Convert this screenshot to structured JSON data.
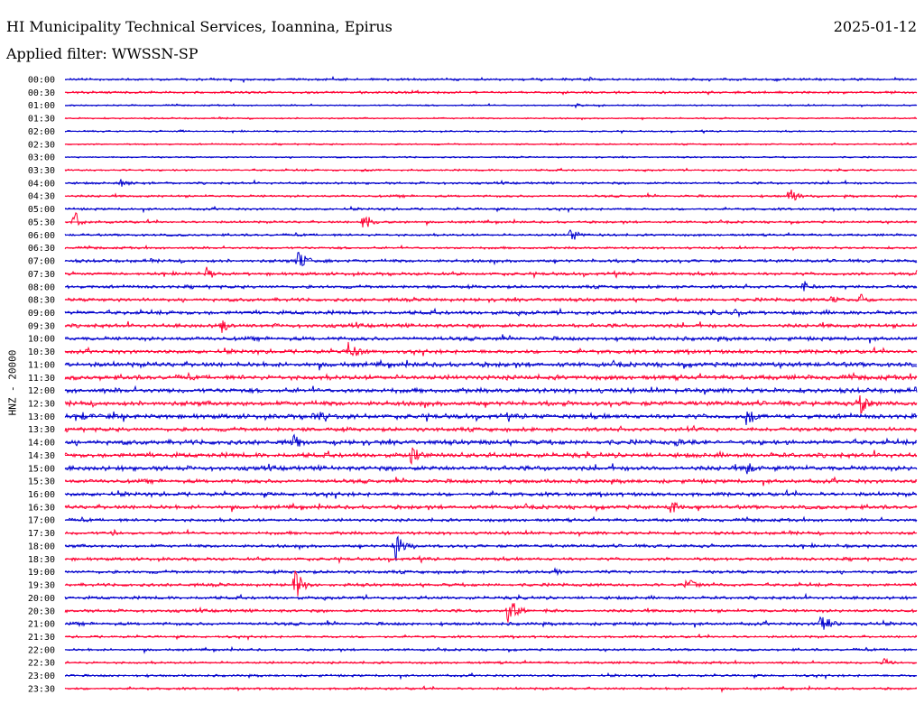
{
  "header": {
    "title": "HI Municipality Technical Services, Ioannina, Epirus",
    "date": "2025-01-12",
    "filter": "Applied filter: WWSSN-SP"
  },
  "chart_data": {
    "type": "line",
    "title": "HI Municipality Technical Services, Ioannina, Epirus",
    "date": "2025-01-12",
    "filter": "Applied filter: WWSSN-SP",
    "ylabel": "HNZ - 20000",
    "colors": {
      "even_row": "#0000cc",
      "odd_row": "#ff0033"
    },
    "row_labels": [
      "00:00",
      "00:30",
      "01:00",
      "01:30",
      "02:00",
      "02:30",
      "03:00",
      "03:30",
      "04:00",
      "04:30",
      "05:00",
      "05:30",
      "06:00",
      "06:30",
      "07:00",
      "07:30",
      "08:00",
      "08:30",
      "09:00",
      "09:30",
      "10:00",
      "10:30",
      "11:00",
      "11:30",
      "12:00",
      "12:30",
      "13:00",
      "13:30",
      "14:00",
      "14:30",
      "15:00",
      "15:30",
      "16:00",
      "16:30",
      "17:00",
      "17:30",
      "18:00",
      "18:30",
      "19:00",
      "19:30",
      "20:00",
      "20:30",
      "21:00",
      "21:30",
      "22:00",
      "22:30",
      "23:00",
      "23:30"
    ],
    "noise_level": [
      1.5,
      1.5,
      1,
      1,
      1,
      1,
      1,
      1.2,
      1.5,
      1.5,
      1.5,
      1.5,
      1.5,
      1.5,
      2,
      2,
      2,
      2.2,
      2.5,
      2.5,
      2.5,
      2.5,
      3,
      3,
      3,
      3,
      3,
      2.5,
      3,
      3,
      3,
      2.5,
      2.5,
      2.5,
      2,
      2,
      2,
      2,
      2,
      2,
      2,
      2,
      2,
      1.5,
      1.5,
      1.5,
      1.5,
      1.5
    ],
    "events": [
      {
        "row": 0,
        "minute": 18.5,
        "amplitude": 4
      },
      {
        "row": 2,
        "minute": 18,
        "amplitude": 3
      },
      {
        "row": 4,
        "minute": 4,
        "amplitude": 4
      },
      {
        "row": 7,
        "minute": 10.5,
        "amplitude": 5
      },
      {
        "row": 8,
        "minute": 2,
        "amplitude": 7
      },
      {
        "row": 9,
        "minute": 25.5,
        "amplitude": 14
      },
      {
        "row": 11,
        "minute": 0.3,
        "amplitude": 14
      },
      {
        "row": 11,
        "minute": 10.5,
        "amplitude": 14
      },
      {
        "row": 12,
        "minute": 17.8,
        "amplitude": 12
      },
      {
        "row": 14,
        "minute": 8.2,
        "amplitude": 18
      },
      {
        "row": 15,
        "minute": 5,
        "amplitude": 12
      },
      {
        "row": 15,
        "minute": 30,
        "amplitude": 7
      },
      {
        "row": 16,
        "minute": 26,
        "amplitude": 10
      },
      {
        "row": 17,
        "minute": 27,
        "amplitude": 7
      },
      {
        "row": 17,
        "minute": 28,
        "amplitude": 9
      },
      {
        "row": 18,
        "minute": 23.5,
        "amplitude": 10
      },
      {
        "row": 19,
        "minute": 5.5,
        "amplitude": 11
      },
      {
        "row": 21,
        "minute": 10,
        "amplitude": 16
      },
      {
        "row": 25,
        "minute": 28,
        "amplitude": 16
      },
      {
        "row": 26,
        "minute": 0.6,
        "amplitude": 7
      },
      {
        "row": 26,
        "minute": 8.8,
        "amplitude": 12
      },
      {
        "row": 26,
        "minute": 24,
        "amplitude": 16
      },
      {
        "row": 28,
        "minute": 8,
        "amplitude": 14
      },
      {
        "row": 28,
        "minute": 21.5,
        "amplitude": 8
      },
      {
        "row": 29,
        "minute": 12.2,
        "amplitude": 14
      },
      {
        "row": 30,
        "minute": 24,
        "amplitude": 12
      },
      {
        "row": 33,
        "minute": 21.3,
        "amplitude": 12
      },
      {
        "row": 35,
        "minute": 1.7,
        "amplitude": 6
      },
      {
        "row": 36,
        "minute": 11.6,
        "amplitude": 22
      },
      {
        "row": 38,
        "minute": 17.2,
        "amplitude": 7
      },
      {
        "row": 39,
        "minute": 8.1,
        "amplitude": 22
      },
      {
        "row": 39,
        "minute": 21.9,
        "amplitude": 14
      },
      {
        "row": 41,
        "minute": 15.6,
        "amplitude": 22
      },
      {
        "row": 42,
        "minute": 26.6,
        "amplitude": 22
      },
      {
        "row": 45,
        "minute": 28.8,
        "amplitude": 9
      }
    ]
  }
}
